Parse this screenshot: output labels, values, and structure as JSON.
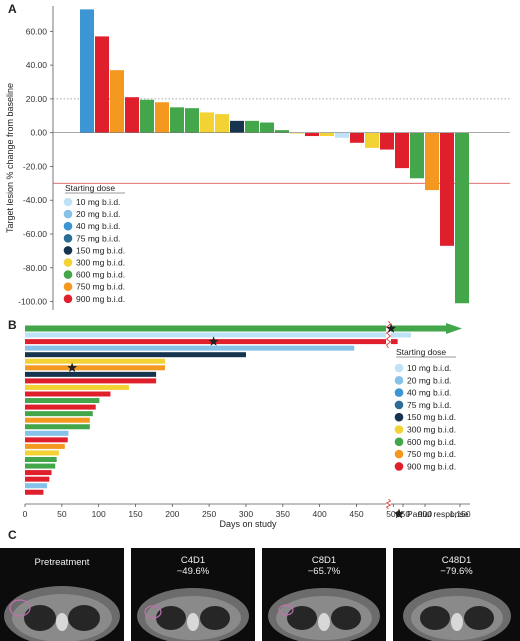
{
  "panel_letters": {
    "a": "A",
    "b": "B",
    "c": "C"
  },
  "colors": {
    "10 mg b.i.d.": "#bfe2f6",
    "20 mg b.i.d.": "#86c1e8",
    "40 mg b.i.d.": "#3b96d3",
    "75 mg b.i.d.": "#2b6d98",
    "150 mg b.i.d.": "#17344f",
    "300 mg b.i.d.": "#f3d234",
    "600 mg b.i.d.": "#43a64a",
    "750 mg b.i.d.": "#f5981f",
    "900 mg b.i.d.": "#e01f2d"
  },
  "chart_data": [
    {
      "type": "bar",
      "ylabel": "Target lesion % change from baseline",
      "ylim": [
        -105,
        75
      ],
      "yticks": [
        "60.00",
        "40.00",
        "20.00",
        "0.00",
        "-20.00",
        "-40.00",
        "-60.00",
        "-80.00",
        "-100.00"
      ],
      "ytick_values": [
        60,
        40,
        20,
        0,
        -20,
        -40,
        -60,
        -80,
        -100
      ],
      "reference_lines": [
        {
          "y": 20,
          "style": "dotted"
        },
        {
          "y": -30,
          "style": "solid",
          "color": "#e05555"
        }
      ],
      "legend_title": "Starting dose",
      "legend": [
        "10 mg b.i.d.",
        "20 mg b.i.d.",
        "40 mg b.i.d.",
        "75 mg b.i.d.",
        "150 mg b.i.d.",
        "300 mg b.i.d.",
        "600 mg b.i.d.",
        "750 mg b.i.d.",
        "900 mg b.i.d."
      ],
      "bars": [
        {
          "value": 73,
          "dose": "40 mg b.i.d."
        },
        {
          "value": 57,
          "dose": "900 mg b.i.d."
        },
        {
          "value": 37,
          "dose": "750 mg b.i.d."
        },
        {
          "value": 21,
          "dose": "900 mg b.i.d."
        },
        {
          "value": 19.5,
          "dose": "600 mg b.i.d."
        },
        {
          "value": 18,
          "dose": "750 mg b.i.d."
        },
        {
          "value": 15,
          "dose": "600 mg b.i.d."
        },
        {
          "value": 14.5,
          "dose": "600 mg b.i.d."
        },
        {
          "value": 12,
          "dose": "300 mg b.i.d."
        },
        {
          "value": 11,
          "dose": "300 mg b.i.d."
        },
        {
          "value": 7,
          "dose": "150 mg b.i.d."
        },
        {
          "value": 7,
          "dose": "600 mg b.i.d."
        },
        {
          "value": 6,
          "dose": "600 mg b.i.d."
        },
        {
          "value": 1.5,
          "dose": "600 mg b.i.d."
        },
        {
          "value": -0.5,
          "dose": "300 mg b.i.d."
        },
        {
          "value": -2,
          "dose": "900 mg b.i.d."
        },
        {
          "value": -2,
          "dose": "300 mg b.i.d."
        },
        {
          "value": -3,
          "dose": "10 mg b.i.d."
        },
        {
          "value": -6,
          "dose": "900 mg b.i.d."
        },
        {
          "value": -9,
          "dose": "300 mg b.i.d."
        },
        {
          "value": -10,
          "dose": "900 mg b.i.d."
        },
        {
          "value": -21,
          "dose": "900 mg b.i.d."
        },
        {
          "value": -27,
          "dose": "600 mg b.i.d."
        },
        {
          "value": -34,
          "dose": "750 mg b.i.d."
        },
        {
          "value": -67,
          "dose": "900 mg b.i.d."
        },
        {
          "value": -101,
          "dose": "600 mg b.i.d."
        }
      ]
    },
    {
      "type": "bar",
      "orientation": "horizontal",
      "xlabel": "Days on study",
      "xticks": [
        "0",
        "50",
        "100",
        "150",
        "200",
        "250",
        "300",
        "350",
        "400",
        "450",
        "500",
        "650",
        "900",
        "1,150"
      ],
      "legend_title": "Starting dose",
      "legend": [
        "10 mg b.i.d.",
        "20 mg b.i.d.",
        "40 mg b.i.d.",
        "75 mg b.i.d.",
        "150 mg b.i.d.",
        "300 mg b.i.d.",
        "600 mg b.i.d.",
        "750 mg b.i.d.",
        "900 mg b.i.d."
      ],
      "partial_response_label": "Partial response",
      "bars": [
        {
          "days": 1300,
          "dose": "600 mg b.i.d.",
          "ongoing": true,
          "pr_day": 497
        },
        {
          "days": 760,
          "dose": "10 mg b.i.d."
        },
        {
          "days": 600,
          "dose": "900 mg b.i.d.",
          "pr_day": 256
        },
        {
          "days": 447,
          "dose": "20 mg b.i.d."
        },
        {
          "days": 300,
          "dose": "150 mg b.i.d."
        },
        {
          "days": 190,
          "dose": "300 mg b.i.d."
        },
        {
          "days": 190,
          "dose": "750 mg b.i.d.",
          "pr_day": 64
        },
        {
          "days": 178,
          "dose": "150 mg b.i.d."
        },
        {
          "days": 178,
          "dose": "900 mg b.i.d."
        },
        {
          "days": 141,
          "dose": "300 mg b.i.d."
        },
        {
          "days": 116,
          "dose": "900 mg b.i.d."
        },
        {
          "days": 101,
          "dose": "600 mg b.i.d."
        },
        {
          "days": 96,
          "dose": "900 mg b.i.d."
        },
        {
          "days": 92,
          "dose": "600 mg b.i.d."
        },
        {
          "days": 88,
          "dose": "750 mg b.i.d."
        },
        {
          "days": 88,
          "dose": "600 mg b.i.d."
        },
        {
          "days": 59,
          "dose": "20 mg b.i.d."
        },
        {
          "days": 58,
          "dose": "900 mg b.i.d."
        },
        {
          "days": 54,
          "dose": "750 mg b.i.d."
        },
        {
          "days": 46,
          "dose": "300 mg b.i.d."
        },
        {
          "days": 43,
          "dose": "600 mg b.i.d."
        },
        {
          "days": 41,
          "dose": "600 mg b.i.d."
        },
        {
          "days": 36,
          "dose": "900 mg b.i.d."
        },
        {
          "days": 33,
          "dose": "900 mg b.i.d."
        },
        {
          "days": 30,
          "dose": "20 mg b.i.d."
        },
        {
          "days": 25,
          "dose": "900 mg b.i.d."
        }
      ]
    }
  ],
  "scans": [
    {
      "label": "Pretreatment",
      "value": ""
    },
    {
      "label": "C4D1",
      "value": "−49.6%"
    },
    {
      "label": "C8D1",
      "value": "−65.7%"
    },
    {
      "label": "C48D1",
      "value": "−79.6%"
    }
  ]
}
